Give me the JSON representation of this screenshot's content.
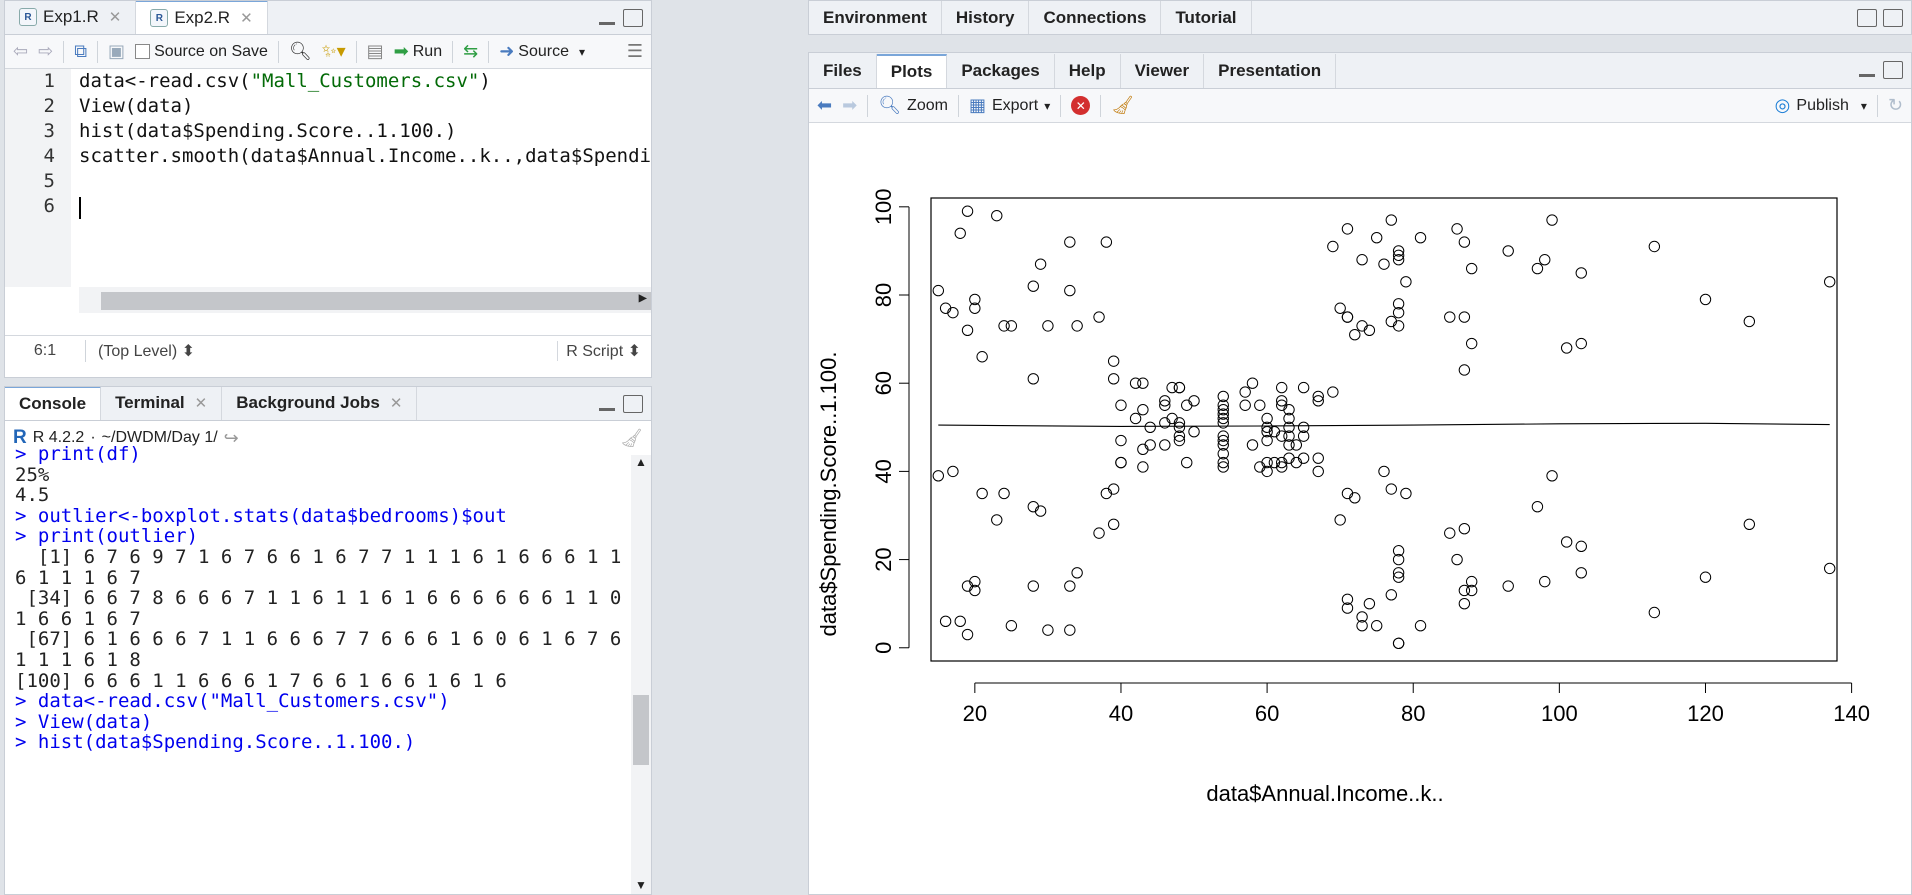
{
  "editor": {
    "tabs": [
      {
        "label": "Exp1.R",
        "active": false
      },
      {
        "label": "Exp2.R",
        "active": true
      }
    ],
    "toolbar": {
      "source_on_save": "Source on Save",
      "run": "Run",
      "source": "Source"
    },
    "lines": [
      {
        "num": "1",
        "pre": "data<-read.csv(",
        "str": "\"Mall_Customers.csv\"",
        "post": ")"
      },
      {
        "num": "2",
        "pre": "View(data)",
        "str": "",
        "post": ""
      },
      {
        "num": "3",
        "pre": "hist(data$Spending.Score..1.100.)",
        "str": "",
        "post": ""
      },
      {
        "num": "4",
        "pre": "scatter.smooth(data$Annual.Income..k..,data$Spending.Score",
        "str": "",
        "post": ""
      },
      {
        "num": "5",
        "pre": "",
        "str": "",
        "post": ""
      },
      {
        "num": "6",
        "pre": "",
        "str": "",
        "post": ""
      }
    ],
    "status": {
      "position": "6:1",
      "scope": "(Top Level)",
      "type": "R Script"
    }
  },
  "console": {
    "tabs": [
      "Console",
      "Terminal",
      "Background Jobs"
    ],
    "r_version": "R 4.2.2",
    "path": "~/DWDM/Day 1/",
    "lines": [
      {
        "t": "> print(df)",
        "cmd": true
      },
      {
        "t": "25%",
        "cmd": false
      },
      {
        "t": "4.5",
        "cmd": false
      },
      {
        "t": "> outlier<-boxplot.stats(data$bedrooms)$out",
        "cmd": true
      },
      {
        "t": "> print(outlier)",
        "cmd": true
      },
      {
        "t": "  [1] 6 7 6 9 7 1 6 7 6 6 1 6 7 7 1 1 1 6 1 6 6 6 1 1 6 1 6",
        "cmd": false
      },
      {
        "t": "6 1 1 1 6 7",
        "cmd": false
      },
      {
        "t": " [34] 6 6 7 8 6 6 6 7 1 1 6 1 1 6 1 6 6 6 6 6 6 1 1 0 1 6",
        "cmd": false
      },
      {
        "t": "1 6 6 1 6 7",
        "cmd": false
      },
      {
        "t": " [67] 6 1 6 6 6 7 1 1 6 6 6 7 7 6 6 6 1 6 0 6 1 6 7 6 6 6 1",
        "cmd": false
      },
      {
        "t": "1 1 1 6 1 8",
        "cmd": false
      },
      {
        "t": "[100] 6 6 6 1 1 6 6 6 1 7 6 6 1 6 6 1 6 1 6",
        "cmd": false
      },
      {
        "t": "> data<-read.csv(\"Mall_Customers.csv\")",
        "cmd": true
      },
      {
        "t": "> View(data)",
        "cmd": true
      },
      {
        "t": "> hist(data$Spending.Score..1.100.)",
        "cmd": true
      }
    ]
  },
  "env": {
    "tabs": [
      "Environment",
      "History",
      "Connections",
      "Tutorial"
    ]
  },
  "files": {
    "tabs": [
      "Files",
      "Plots",
      "Packages",
      "Help",
      "Viewer",
      "Presentation"
    ],
    "active_tab": "Plots",
    "toolbar": {
      "zoom": "Zoom",
      "export": "Export",
      "publish": "Publish"
    }
  },
  "chart_data": {
    "type": "scatter",
    "xlabel": "data$Annual.Income..k..",
    "ylabel": "data$Spending.Score..1.100.",
    "xlim": [
      14,
      138
    ],
    "ylim": [
      -3,
      102
    ],
    "xticks": [
      20,
      40,
      60,
      80,
      100,
      120,
      140
    ],
    "yticks": [
      0,
      20,
      40,
      60,
      80,
      100
    ],
    "points": [
      [
        15,
        39
      ],
      [
        15,
        81
      ],
      [
        16,
        6
      ],
      [
        16,
        77
      ],
      [
        17,
        40
      ],
      [
        17,
        76
      ],
      [
        18,
        6
      ],
      [
        18,
        94
      ],
      [
        19,
        3
      ],
      [
        19,
        72
      ],
      [
        19,
        14
      ],
      [
        19,
        99
      ],
      [
        20,
        15
      ],
      [
        20,
        77
      ],
      [
        20,
        13
      ],
      [
        20,
        79
      ],
      [
        21,
        35
      ],
      [
        21,
        66
      ],
      [
        23,
        29
      ],
      [
        23,
        98
      ],
      [
        24,
        35
      ],
      [
        24,
        73
      ],
      [
        25,
        5
      ],
      [
        25,
        73
      ],
      [
        28,
        14
      ],
      [
        28,
        82
      ],
      [
        28,
        32
      ],
      [
        28,
        61
      ],
      [
        29,
        31
      ],
      [
        29,
        87
      ],
      [
        30,
        4
      ],
      [
        30,
        73
      ],
      [
        33,
        4
      ],
      [
        33,
        92
      ],
      [
        33,
        14
      ],
      [
        33,
        81
      ],
      [
        34,
        17
      ],
      [
        34,
        73
      ],
      [
        37,
        26
      ],
      [
        37,
        75
      ],
      [
        38,
        35
      ],
      [
        38,
        92
      ],
      [
        39,
        36
      ],
      [
        39,
        61
      ],
      [
        39,
        28
      ],
      [
        39,
        65
      ],
      [
        40,
        55
      ],
      [
        40,
        47
      ],
      [
        40,
        42
      ],
      [
        40,
        42
      ],
      [
        42,
        52
      ],
      [
        42,
        60
      ],
      [
        43,
        54
      ],
      [
        43,
        60
      ],
      [
        43,
        45
      ],
      [
        43,
        41
      ],
      [
        44,
        50
      ],
      [
        44,
        46
      ],
      [
        46,
        51
      ],
      [
        46,
        46
      ],
      [
        46,
        56
      ],
      [
        46,
        55
      ],
      [
        47,
        52
      ],
      [
        47,
        59
      ],
      [
        48,
        51
      ],
      [
        48,
        59
      ],
      [
        48,
        50
      ],
      [
        48,
        48
      ],
      [
        48,
        59
      ],
      [
        48,
        47
      ],
      [
        49,
        55
      ],
      [
        49,
        42
      ],
      [
        50,
        49
      ],
      [
        50,
        56
      ],
      [
        54,
        47
      ],
      [
        54,
        54
      ],
      [
        54,
        53
      ],
      [
        54,
        48
      ],
      [
        54,
        52
      ],
      [
        54,
        42
      ],
      [
        54,
        51
      ],
      [
        54,
        55
      ],
      [
        54,
        41
      ],
      [
        54,
        44
      ],
      [
        54,
        57
      ],
      [
        54,
        46
      ],
      [
        57,
        58
      ],
      [
        57,
        55
      ],
      [
        58,
        60
      ],
      [
        58,
        46
      ],
      [
        59,
        55
      ],
      [
        59,
        41
      ],
      [
        60,
        49
      ],
      [
        60,
        40
      ],
      [
        60,
        42
      ],
      [
        60,
        52
      ],
      [
        60,
        47
      ],
      [
        60,
        50
      ],
      [
        61,
        42
      ],
      [
        61,
        49
      ],
      [
        62,
        41
      ],
      [
        62,
        48
      ],
      [
        62,
        59
      ],
      [
        62,
        55
      ],
      [
        62,
        56
      ],
      [
        62,
        42
      ],
      [
        63,
        50
      ],
      [
        63,
        46
      ],
      [
        63,
        43
      ],
      [
        63,
        48
      ],
      [
        63,
        52
      ],
      [
        63,
        54
      ],
      [
        64,
        42
      ],
      [
        64,
        46
      ],
      [
        65,
        48
      ],
      [
        65,
        50
      ],
      [
        65,
        43
      ],
      [
        65,
        59
      ],
      [
        67,
        43
      ],
      [
        67,
        57
      ],
      [
        67,
        56
      ],
      [
        67,
        40
      ],
      [
        69,
        58
      ],
      [
        69,
        91
      ],
      [
        70,
        29
      ],
      [
        70,
        77
      ],
      [
        71,
        35
      ],
      [
        71,
        95
      ],
      [
        71,
        11
      ],
      [
        71,
        75
      ],
      [
        71,
        9
      ],
      [
        71,
        75
      ],
      [
        72,
        34
      ],
      [
        72,
        71
      ],
      [
        73,
        5
      ],
      [
        73,
        88
      ],
      [
        73,
        7
      ],
      [
        73,
        73
      ],
      [
        74,
        10
      ],
      [
        74,
        72
      ],
      [
        75,
        5
      ],
      [
        75,
        93
      ],
      [
        76,
        40
      ],
      [
        76,
        87
      ],
      [
        77,
        12
      ],
      [
        77,
        97
      ],
      [
        77,
        36
      ],
      [
        77,
        74
      ],
      [
        78,
        22
      ],
      [
        78,
        90
      ],
      [
        78,
        17
      ],
      [
        78,
        88
      ],
      [
        78,
        20
      ],
      [
        78,
        76
      ],
      [
        78,
        16
      ],
      [
        78,
        89
      ],
      [
        78,
        1
      ],
      [
        78,
        78
      ],
      [
        78,
        1
      ],
      [
        78,
        73
      ],
      [
        79,
        35
      ],
      [
        79,
        83
      ],
      [
        81,
        5
      ],
      [
        81,
        93
      ],
      [
        85,
        26
      ],
      [
        85,
        75
      ],
      [
        86,
        20
      ],
      [
        86,
        95
      ],
      [
        87,
        27
      ],
      [
        87,
        63
      ],
      [
        87,
        13
      ],
      [
        87,
        75
      ],
      [
        87,
        10
      ],
      [
        87,
        92
      ],
      [
        88,
        13
      ],
      [
        88,
        86
      ],
      [
        88,
        15
      ],
      [
        88,
        69
      ],
      [
        93,
        14
      ],
      [
        93,
        90
      ],
      [
        97,
        32
      ],
      [
        97,
        86
      ],
      [
        98,
        15
      ],
      [
        98,
        88
      ],
      [
        99,
        39
      ],
      [
        99,
        97
      ],
      [
        101,
        24
      ],
      [
        101,
        68
      ],
      [
        103,
        17
      ],
      [
        103,
        85
      ],
      [
        103,
        23
      ],
      [
        103,
        69
      ],
      [
        113,
        8
      ],
      [
        113,
        91
      ],
      [
        120,
        16
      ],
      [
        120,
        79
      ],
      [
        126,
        28
      ],
      [
        126,
        74
      ],
      [
        137,
        18
      ],
      [
        137,
        83
      ]
    ],
    "smooth": [
      [
        15,
        50.5
      ],
      [
        40,
        50.2
      ],
      [
        60,
        50.3
      ],
      [
        80,
        50.5
      ],
      [
        100,
        50.8
      ],
      [
        120,
        50.9
      ],
      [
        137,
        50.6
      ]
    ]
  }
}
